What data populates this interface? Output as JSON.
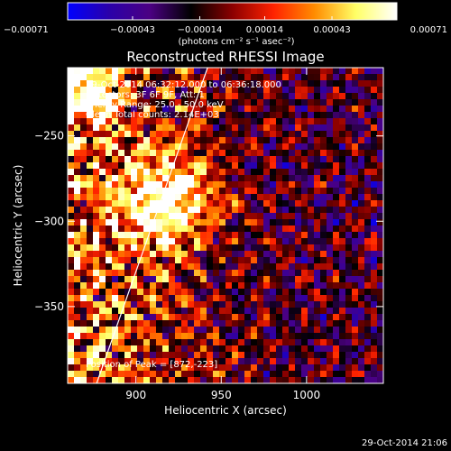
{
  "chart_data": {
    "type": "heatmap",
    "title": "Reconstructed RHESSI Image",
    "xlabel": "Heliocentric X (arcsec)",
    "ylabel": "Heliocentric Y (arcsec)",
    "xlim": [
      860,
      1045
    ],
    "ylim": [
      -395,
      -210
    ],
    "x_ticks": [
      900,
      950,
      1000
    ],
    "x_tick_labels": [
      "900",
      "950",
      "1000"
    ],
    "y_ticks": [
      -250,
      -300,
      -350
    ],
    "y_tick_labels": [
      "−250",
      "−300",
      "−350"
    ],
    "colorbar": {
      "range": [
        -0.00071,
        0.00071
      ],
      "ticks": [
        -0.00071,
        -0.00043,
        -0.00014,
        0.00014,
        0.00043,
        0.00071
      ],
      "tick_labels": [
        "−0.00071",
        "−0.00043",
        "−0.00014",
        "0.00014",
        "0.00043",
        "0.00071"
      ],
      "unit_label": "(photons cm⁻² s⁻¹ asec⁻²)",
      "colors": [
        "#0000ff",
        "#2a00aa",
        "#4b0082",
        "#000000",
        "#8b0000",
        "#ff2200",
        "#ff8c00",
        "#ffff66",
        "#ffffff"
      ]
    },
    "info_lines": [
      "29-Oct-2014 06:32:12.000 to 06:36:18.000",
      "Detectors: 3F 6F 9F, Att: 1",
      "Energy Range: 25.0 - 50.0 keV",
      "Clean   Total counts: 2.14E+03"
    ],
    "peak_label": "Position of Peak = [872,-223]",
    "peak_position": [
      872,
      -223
    ],
    "limb_line": {
      "start": [
        877,
        -395
      ],
      "end": [
        942,
        -210
      ],
      "color": "#ffffff"
    },
    "grid": false
  },
  "footer": {
    "timestamp": "29-Oct-2014 21:06"
  }
}
